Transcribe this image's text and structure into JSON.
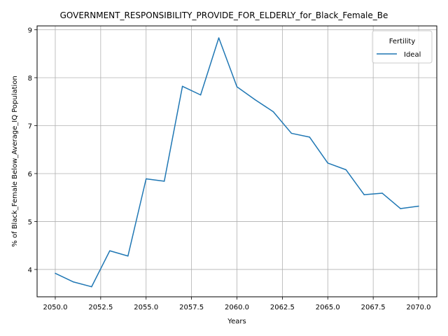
{
  "chart_data": {
    "type": "line",
    "title": "GOVERNMENT_RESPONSIBILITY_PROVIDE_FOR_ELDERLY_for_Black_Female_Be",
    "xlabel": "Years",
    "ylabel": "% of Black_Female Below_Average_IQ Population",
    "xlim": [
      2049.0,
      2071.0
    ],
    "ylim": [
      3.43,
      9.08
    ],
    "x_ticks": [
      2050.0,
      2052.5,
      2055.0,
      2057.5,
      2060.0,
      2062.5,
      2065.0,
      2067.5,
      2070.0
    ],
    "x_tick_labels": [
      "2050.0",
      "2052.5",
      "2055.0",
      "2057.5",
      "2060.0",
      "2062.5",
      "2065.0",
      "2067.5",
      "2070.0"
    ],
    "y_ticks": [
      4,
      5,
      6,
      7,
      8,
      9
    ],
    "y_tick_labels": [
      "4",
      "5",
      "6",
      "7",
      "8",
      "9"
    ],
    "grid": true,
    "legend": {
      "title": "Fertility",
      "placement": "top-right"
    },
    "x": [
      2050,
      2051,
      2052,
      2053,
      2054,
      2055,
      2056,
      2057,
      2058,
      2059,
      2060,
      2061,
      2062,
      2063,
      2064,
      2065,
      2066,
      2067,
      2068,
      2069,
      2070
    ],
    "series": [
      {
        "name": "Ideal",
        "color": "#1f77b4",
        "values": [
          3.92,
          3.74,
          3.64,
          4.39,
          4.28,
          5.89,
          5.84,
          7.82,
          7.64,
          8.83,
          7.81,
          7.54,
          7.29,
          6.84,
          6.76,
          6.22,
          6.08,
          5.56,
          5.59,
          5.27,
          5.32
        ]
      }
    ]
  }
}
